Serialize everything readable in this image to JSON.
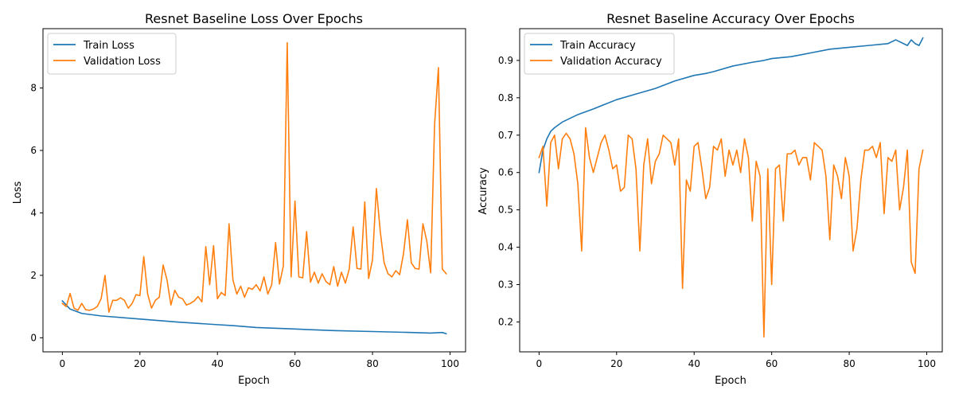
{
  "colors": {
    "train": "#1f77b4",
    "validation": "#ff7f0e"
  },
  "chart_data": [
    {
      "type": "line",
      "title": "Resnet Baseline Loss Over Epochs",
      "xlabel": "Epoch",
      "ylabel": "Loss",
      "xlim": [
        -5,
        104
      ],
      "ylim": [
        -0.45,
        9.9
      ],
      "xticks": [
        0,
        20,
        40,
        60,
        80,
        100
      ],
      "yticks": [
        0,
        2,
        4,
        6,
        8
      ],
      "grid": false,
      "legend": "top-left",
      "series": [
        {
          "name": "Train Loss",
          "color_key": "train",
          "points": [
            [
              0,
              1.18
            ],
            [
              2,
              0.92
            ],
            [
              5,
              0.78
            ],
            [
              10,
              0.7
            ],
            [
              20,
              0.6
            ],
            [
              30,
              0.5
            ],
            [
              40,
              0.42
            ],
            [
              44,
              0.39
            ],
            [
              50,
              0.33
            ],
            [
              60,
              0.28
            ],
            [
              70,
              0.23
            ],
            [
              80,
              0.2
            ],
            [
              90,
              0.17
            ],
            [
              95,
              0.15
            ],
            [
              98,
              0.17
            ],
            [
              99,
              0.13
            ]
          ]
        },
        {
          "name": "Validation Loss",
          "color_key": "validation",
          "points": [
            [
              0,
              1.1
            ],
            [
              1,
              1.0
            ],
            [
              2,
              1.42
            ],
            [
              3,
              0.95
            ],
            [
              4,
              0.88
            ],
            [
              5,
              1.1
            ],
            [
              6,
              0.9
            ],
            [
              7,
              0.88
            ],
            [
              8,
              0.92
            ],
            [
              9,
              1.0
            ],
            [
              10,
              1.25
            ],
            [
              11,
              2.0
            ],
            [
              12,
              0.82
            ],
            [
              13,
              1.2
            ],
            [
              14,
              1.2
            ],
            [
              15,
              1.28
            ],
            [
              16,
              1.2
            ],
            [
              17,
              0.95
            ],
            [
              18,
              1.1
            ],
            [
              19,
              1.38
            ],
            [
              20,
              1.35
            ],
            [
              21,
              2.6
            ],
            [
              22,
              1.4
            ],
            [
              23,
              0.95
            ],
            [
              24,
              1.2
            ],
            [
              25,
              1.3
            ],
            [
              26,
              2.33
            ],
            [
              27,
              1.85
            ],
            [
              28,
              1.05
            ],
            [
              29,
              1.52
            ],
            [
              30,
              1.3
            ],
            [
              31,
              1.25
            ],
            [
              32,
              1.05
            ],
            [
              33,
              1.1
            ],
            [
              34,
              1.18
            ],
            [
              35,
              1.32
            ],
            [
              36,
              1.15
            ],
            [
              37,
              2.92
            ],
            [
              38,
              1.7
            ],
            [
              39,
              2.95
            ],
            [
              40,
              1.25
            ],
            [
              41,
              1.45
            ],
            [
              42,
              1.35
            ],
            [
              43,
              3.65
            ],
            [
              44,
              1.85
            ],
            [
              45,
              1.4
            ],
            [
              46,
              1.65
            ],
            [
              47,
              1.3
            ],
            [
              48,
              1.6
            ],
            [
              49,
              1.55
            ],
            [
              50,
              1.7
            ],
            [
              51,
              1.5
            ],
            [
              52,
              1.95
            ],
            [
              53,
              1.4
            ],
            [
              54,
              1.7
            ],
            [
              55,
              3.05
            ],
            [
              56,
              1.72
            ],
            [
              57,
              2.3
            ],
            [
              58,
              9.45
            ],
            [
              59,
              1.95
            ],
            [
              60,
              4.38
            ],
            [
              61,
              1.95
            ],
            [
              62,
              1.92
            ],
            [
              63,
              3.4
            ],
            [
              64,
              1.78
            ],
            [
              65,
              2.1
            ],
            [
              66,
              1.75
            ],
            [
              67,
              2.05
            ],
            [
              68,
              1.8
            ],
            [
              69,
              1.7
            ],
            [
              70,
              2.28
            ],
            [
              71,
              1.65
            ],
            [
              72,
              2.1
            ],
            [
              73,
              1.75
            ],
            [
              74,
              2.2
            ],
            [
              75,
              3.55
            ],
            [
              76,
              2.22
            ],
            [
              77,
              2.2
            ],
            [
              78,
              4.35
            ],
            [
              79,
              1.9
            ],
            [
              80,
              2.5
            ],
            [
              81,
              4.78
            ],
            [
              82,
              3.4
            ],
            [
              83,
              2.4
            ],
            [
              84,
              2.05
            ],
            [
              85,
              1.95
            ],
            [
              86,
              2.15
            ],
            [
              87,
              2.02
            ],
            [
              88,
              2.7
            ],
            [
              89,
              3.78
            ],
            [
              90,
              2.4
            ],
            [
              91,
              2.22
            ],
            [
              92,
              2.2
            ],
            [
              93,
              3.65
            ],
            [
              94,
              3.1
            ],
            [
              95,
              2.08
            ],
            [
              96,
              6.8
            ],
            [
              97,
              8.65
            ],
            [
              98,
              2.2
            ],
            [
              99,
              2.05
            ]
          ]
        }
      ]
    },
    {
      "type": "line",
      "title": "Resnet Baseline Accuracy Over Epochs",
      "xlabel": "Epoch",
      "ylabel": "Accuracy",
      "xlim": [
        -5,
        104
      ],
      "ylim": [
        0.12,
        0.985
      ],
      "xticks": [
        0,
        20,
        40,
        60,
        80,
        100
      ],
      "yticks": [
        0.2,
        0.3,
        0.4,
        0.5,
        0.6,
        0.7,
        0.8,
        0.9
      ],
      "grid": false,
      "legend": "top-left",
      "series": [
        {
          "name": "Train Accuracy",
          "color_key": "train",
          "points": [
            [
              0,
              0.6
            ],
            [
              1,
              0.66
            ],
            [
              2,
              0.69
            ],
            [
              3,
              0.71
            ],
            [
              4,
              0.72
            ],
            [
              6,
              0.735
            ],
            [
              10,
              0.755
            ],
            [
              14,
              0.77
            ],
            [
              20,
              0.795
            ],
            [
              25,
              0.81
            ],
            [
              30,
              0.825
            ],
            [
              35,
              0.845
            ],
            [
              40,
              0.86
            ],
            [
              43,
              0.865
            ],
            [
              45,
              0.87
            ],
            [
              50,
              0.885
            ],
            [
              55,
              0.895
            ],
            [
              58,
              0.9
            ],
            [
              60,
              0.905
            ],
            [
              65,
              0.91
            ],
            [
              70,
              0.92
            ],
            [
              75,
              0.93
            ],
            [
              80,
              0.935
            ],
            [
              85,
              0.94
            ],
            [
              90,
              0.945
            ],
            [
              92,
              0.955
            ],
            [
              95,
              0.94
            ],
            [
              96,
              0.955
            ],
            [
              97,
              0.945
            ],
            [
              98,
              0.94
            ],
            [
              99,
              0.96
            ]
          ]
        },
        {
          "name": "Validation Accuracy",
          "color_key": "validation",
          "points": [
            [
              0,
              0.64
            ],
            [
              1,
              0.67
            ],
            [
              2,
              0.51
            ],
            [
              3,
              0.68
            ],
            [
              4,
              0.7
            ],
            [
              5,
              0.61
            ],
            [
              6,
              0.69
            ],
            [
              7,
              0.705
            ],
            [
              8,
              0.69
            ],
            [
              9,
              0.65
            ],
            [
              10,
              0.57
            ],
            [
              11,
              0.39
            ],
            [
              12,
              0.72
            ],
            [
              13,
              0.64
            ],
            [
              14,
              0.6
            ],
            [
              15,
              0.64
            ],
            [
              16,
              0.68
            ],
            [
              17,
              0.7
            ],
            [
              18,
              0.66
            ],
            [
              19,
              0.61
            ],
            [
              20,
              0.62
            ],
            [
              21,
              0.55
            ],
            [
              22,
              0.56
            ],
            [
              23,
              0.7
            ],
            [
              24,
              0.69
            ],
            [
              25,
              0.61
            ],
            [
              26,
              0.39
            ],
            [
              27,
              0.62
            ],
            [
              28,
              0.69
            ],
            [
              29,
              0.57
            ],
            [
              30,
              0.63
            ],
            [
              31,
              0.65
            ],
            [
              32,
              0.7
            ],
            [
              33,
              0.69
            ],
            [
              34,
              0.68
            ],
            [
              35,
              0.62
            ],
            [
              36,
              0.69
            ],
            [
              37,
              0.29
            ],
            [
              38,
              0.58
            ],
            [
              39,
              0.55
            ],
            [
              40,
              0.67
            ],
            [
              41,
              0.68
            ],
            [
              42,
              0.61
            ],
            [
              43,
              0.53
            ],
            [
              44,
              0.56
            ],
            [
              45,
              0.67
            ],
            [
              46,
              0.66
            ],
            [
              47,
              0.69
            ],
            [
              48,
              0.59
            ],
            [
              49,
              0.66
            ],
            [
              50,
              0.62
            ],
            [
              51,
              0.66
            ],
            [
              52,
              0.6
            ],
            [
              53,
              0.69
            ],
            [
              54,
              0.64
            ],
            [
              55,
              0.47
            ],
            [
              56,
              0.63
            ],
            [
              57,
              0.59
            ],
            [
              58,
              0.16
            ],
            [
              59,
              0.61
            ],
            [
              60,
              0.3
            ],
            [
              61,
              0.61
            ],
            [
              62,
              0.62
            ],
            [
              63,
              0.47
            ],
            [
              64,
              0.65
            ],
            [
              65,
              0.65
            ],
            [
              66,
              0.66
            ],
            [
              67,
              0.62
            ],
            [
              68,
              0.64
            ],
            [
              69,
              0.64
            ],
            [
              70,
              0.58
            ],
            [
              71,
              0.68
            ],
            [
              72,
              0.67
            ],
            [
              73,
              0.66
            ],
            [
              74,
              0.59
            ],
            [
              75,
              0.42
            ],
            [
              76,
              0.62
            ],
            [
              77,
              0.59
            ],
            [
              78,
              0.53
            ],
            [
              79,
              0.64
            ],
            [
              80,
              0.59
            ],
            [
              81,
              0.39
            ],
            [
              82,
              0.45
            ],
            [
              83,
              0.58
            ],
            [
              84,
              0.66
            ],
            [
              85,
              0.66
            ],
            [
              86,
              0.67
            ],
            [
              87,
              0.64
            ],
            [
              88,
              0.68
            ],
            [
              89,
              0.49
            ],
            [
              90,
              0.64
            ],
            [
              91,
              0.63
            ],
            [
              92,
              0.66
            ],
            [
              93,
              0.5
            ],
            [
              94,
              0.56
            ],
            [
              95,
              0.66
            ],
            [
              96,
              0.36
            ],
            [
              97,
              0.33
            ],
            [
              98,
              0.61
            ],
            [
              99,
              0.66
            ]
          ]
        }
      ]
    }
  ]
}
